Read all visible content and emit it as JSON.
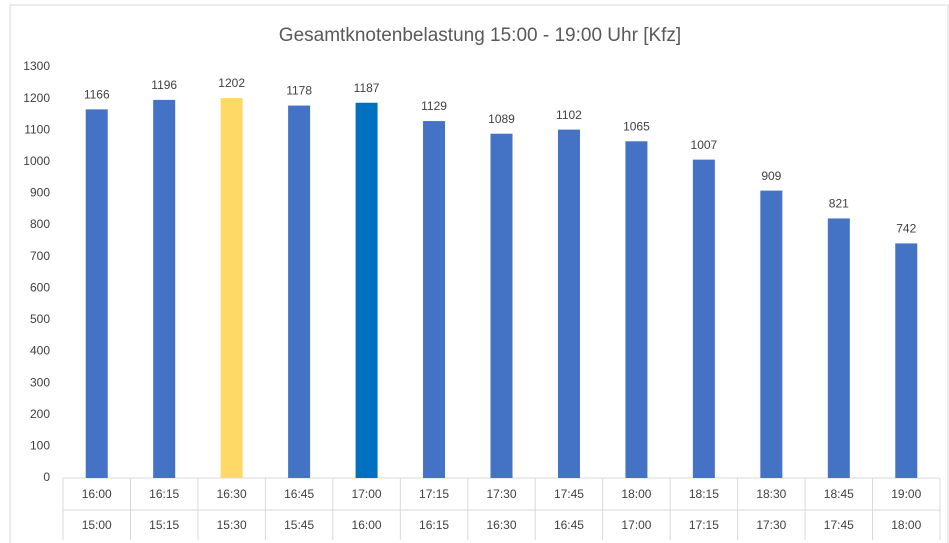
{
  "chart_data": {
    "type": "bar",
    "title": "Gesamtknotenbelastung  15:00 - 19:00 Uhr [Kfz]",
    "categories": [
      [
        "16:00",
        "15:00"
      ],
      [
        "16:15",
        "15:15"
      ],
      [
        "16:30",
        "15:30"
      ],
      [
        "16:45",
        "15:45"
      ],
      [
        "17:00",
        "16:00"
      ],
      [
        "17:15",
        "16:15"
      ],
      [
        "17:30",
        "16:30"
      ],
      [
        "17:45",
        "16:45"
      ],
      [
        "18:00",
        "17:00"
      ],
      [
        "18:15",
        "17:15"
      ],
      [
        "18:30",
        "17:30"
      ],
      [
        "18:45",
        "17:45"
      ],
      [
        "19:00",
        "18:00"
      ]
    ],
    "values": [
      1166,
      1196,
      1202,
      1178,
      1187,
      1129,
      1089,
      1102,
      1065,
      1007,
      909,
      821,
      742
    ],
    "colors": [
      "#4472c4",
      "#4472c4",
      "#ffd966",
      "#4472c4",
      "#0070c0",
      "#4472c4",
      "#4472c4",
      "#4472c4",
      "#4472c4",
      "#4472c4",
      "#4472c4",
      "#4472c4",
      "#4472c4"
    ],
    "ylim": [
      0,
      1300
    ],
    "yticks": [
      0,
      100,
      200,
      300,
      400,
      500,
      600,
      700,
      800,
      900,
      1000,
      1100,
      1200,
      1300
    ],
    "grid": false
  }
}
